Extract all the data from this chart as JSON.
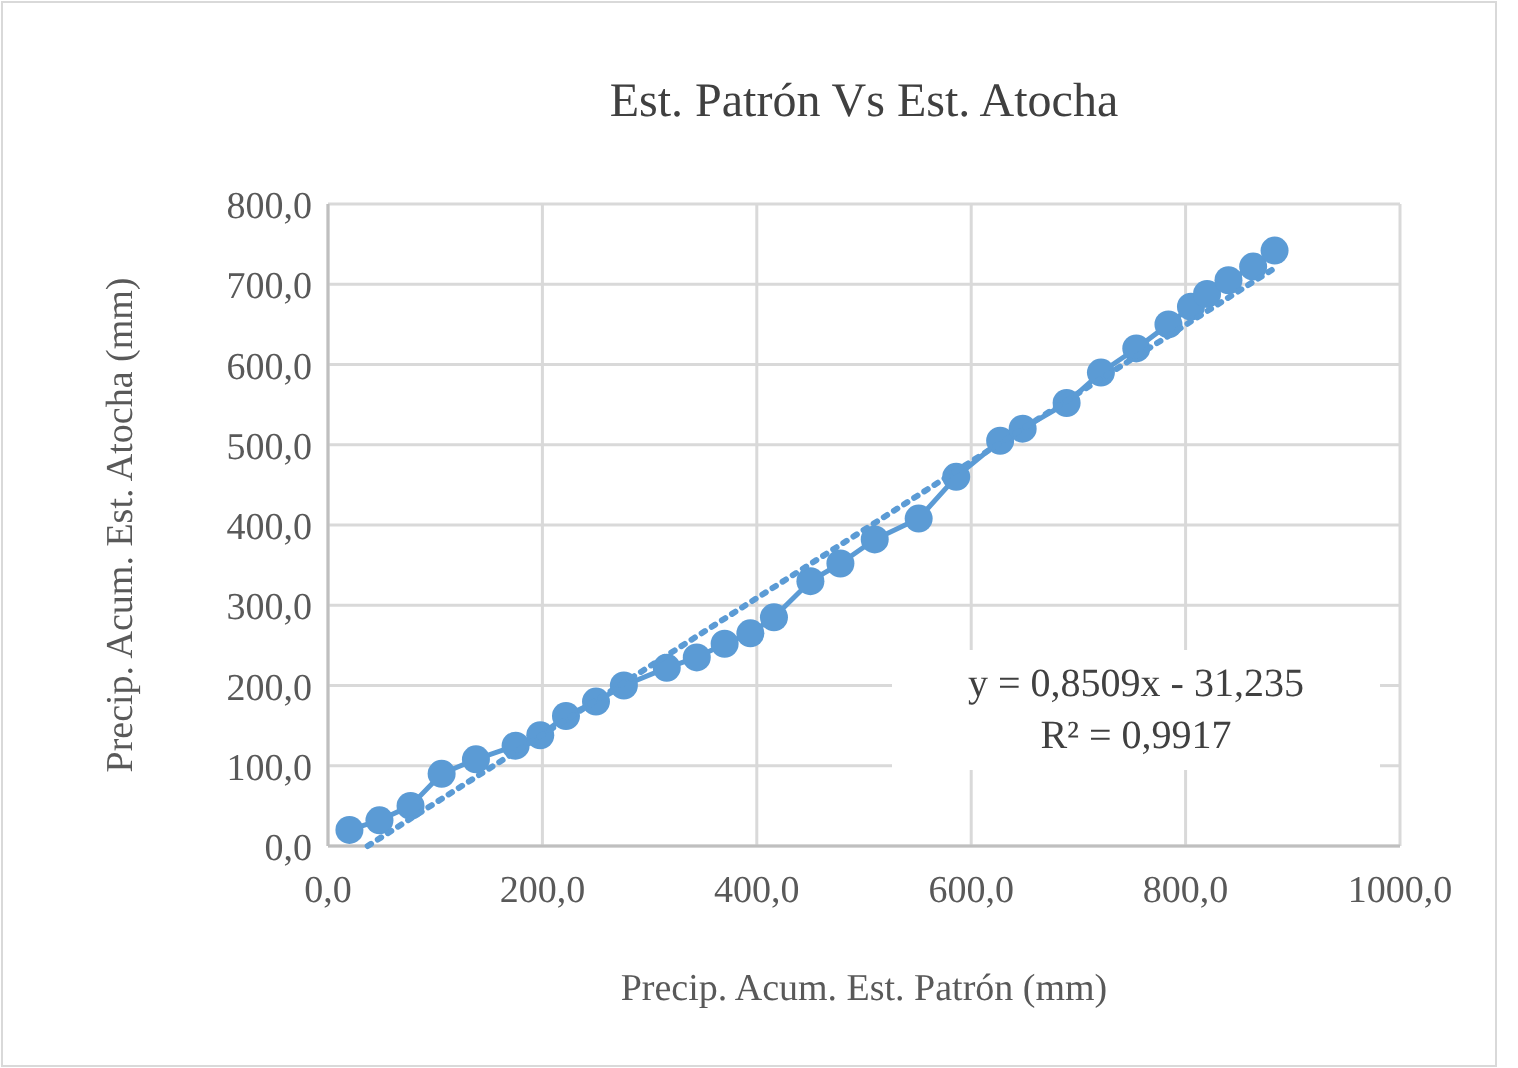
{
  "chart_data": {
    "type": "scatter",
    "title": "Est. Patrón Vs Est. Atocha",
    "xlabel": "Precip. Acum. Est. Patrón (mm)",
    "ylabel": "Precip. Acum. Est. Atocha (mm)",
    "xlim": [
      0,
      1000
    ],
    "xticks": [
      {
        "value": 0,
        "label": "0,0"
      },
      {
        "value": 200,
        "label": "200,0"
      },
      {
        "value": 400,
        "label": "400,0"
      },
      {
        "value": 600,
        "label": "600,0"
      },
      {
        "value": 800,
        "label": "800,0"
      },
      {
        "value": 1000,
        "label": "1000,0"
      }
    ],
    "ylim": [
      0,
      800
    ],
    "yticks": [
      {
        "value": 0,
        "label": "0,0"
      },
      {
        "value": 100,
        "label": "100,0"
      },
      {
        "value": 200,
        "label": "200,0"
      },
      {
        "value": 300,
        "label": "300,0"
      },
      {
        "value": 400,
        "label": "400,0"
      },
      {
        "value": 500,
        "label": "500,0"
      },
      {
        "value": 600,
        "label": "600,0"
      },
      {
        "value": 700,
        "label": "700,0"
      },
      {
        "value": 800,
        "label": "800,0"
      }
    ],
    "grid": true,
    "series": [
      {
        "type": "line",
        "color": "#5b9bd5",
        "marker": "circle",
        "line_style": "solid",
        "x": [
          20,
          48,
          77,
          106,
          138,
          175,
          198,
          222,
          250,
          276,
          316,
          344,
          370,
          394,
          416,
          450,
          478,
          510,
          551,
          586,
          627,
          648,
          689,
          721,
          754,
          784,
          805,
          820,
          840,
          863,
          883
        ],
        "values": [
          20,
          32,
          50,
          90,
          108,
          125,
          138,
          162,
          180,
          200,
          222,
          235,
          252,
          265,
          285,
          330,
          352,
          382,
          408,
          460,
          505,
          520,
          552,
          590,
          620,
          650,
          672,
          688,
          705,
          722,
          742
        ]
      },
      {
        "type": "line",
        "color": "#5b9bd5",
        "marker": "none",
        "line_style": "dotted",
        "x": [
          37,
          883
        ],
        "values": [
          0,
          720
        ]
      }
    ],
    "annotations": [
      "y = 0,8509x - 31,235",
      "R² = 0,9917"
    ]
  }
}
